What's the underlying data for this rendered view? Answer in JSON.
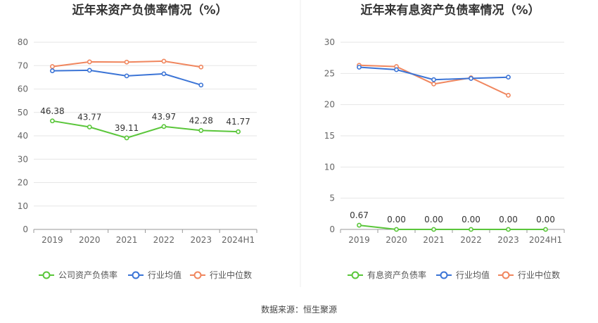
{
  "chart_data": [
    {
      "type": "line",
      "title": "近年来资产负债率情况（%）",
      "categories": [
        "2019",
        "2020",
        "2021",
        "2022",
        "2023",
        "2024H1"
      ],
      "ylim": [
        0,
        80
      ],
      "yticks": [
        0,
        10,
        20,
        30,
        40,
        50,
        60,
        70,
        80
      ],
      "grid": true,
      "legend_position": "bottom",
      "series": [
        {
          "name": "公司资产负债率",
          "color": "#5ac63a",
          "values": [
            46.38,
            43.77,
            39.11,
            43.97,
            42.28,
            41.77
          ],
          "labels": [
            "46.38",
            "43.77",
            "39.11",
            "43.97",
            "42.28",
            "41.77"
          ],
          "show_labels": true
        },
        {
          "name": "行业均值",
          "color": "#3b74d6",
          "values": [
            67.8,
            68.0,
            65.6,
            66.5,
            61.7,
            null
          ],
          "show_labels": false
        },
        {
          "name": "行业中位数",
          "color": "#f0865e",
          "values": [
            69.6,
            71.6,
            71.5,
            71.9,
            69.4,
            null
          ],
          "show_labels": false
        }
      ]
    },
    {
      "type": "line",
      "title": "近年来有息资产负债率情况（%）",
      "categories": [
        "2019",
        "2020",
        "2021",
        "2022",
        "2023",
        "2024H1"
      ],
      "ylim": [
        0,
        30
      ],
      "yticks": [
        0,
        5,
        10,
        15,
        20,
        25,
        30
      ],
      "grid": true,
      "legend_position": "bottom",
      "series": [
        {
          "name": "有息资产负债率",
          "color": "#5ac63a",
          "values": [
            0.67,
            0.0,
            0.0,
            0.0,
            0.0,
            0.0
          ],
          "labels": [
            "0.67",
            "0.00",
            "0.00",
            "0.00",
            "0.00",
            "0.00"
          ],
          "show_labels": true
        },
        {
          "name": "行业均值",
          "color": "#3b74d6",
          "values": [
            26.0,
            25.6,
            24.0,
            24.2,
            24.4,
            null
          ],
          "show_labels": false
        },
        {
          "name": "行业中位数",
          "color": "#f0865e",
          "values": [
            26.3,
            26.1,
            23.3,
            24.3,
            21.5,
            null
          ],
          "show_labels": false
        }
      ]
    }
  ],
  "footer": {
    "source": "数据来源：恒生聚源"
  }
}
